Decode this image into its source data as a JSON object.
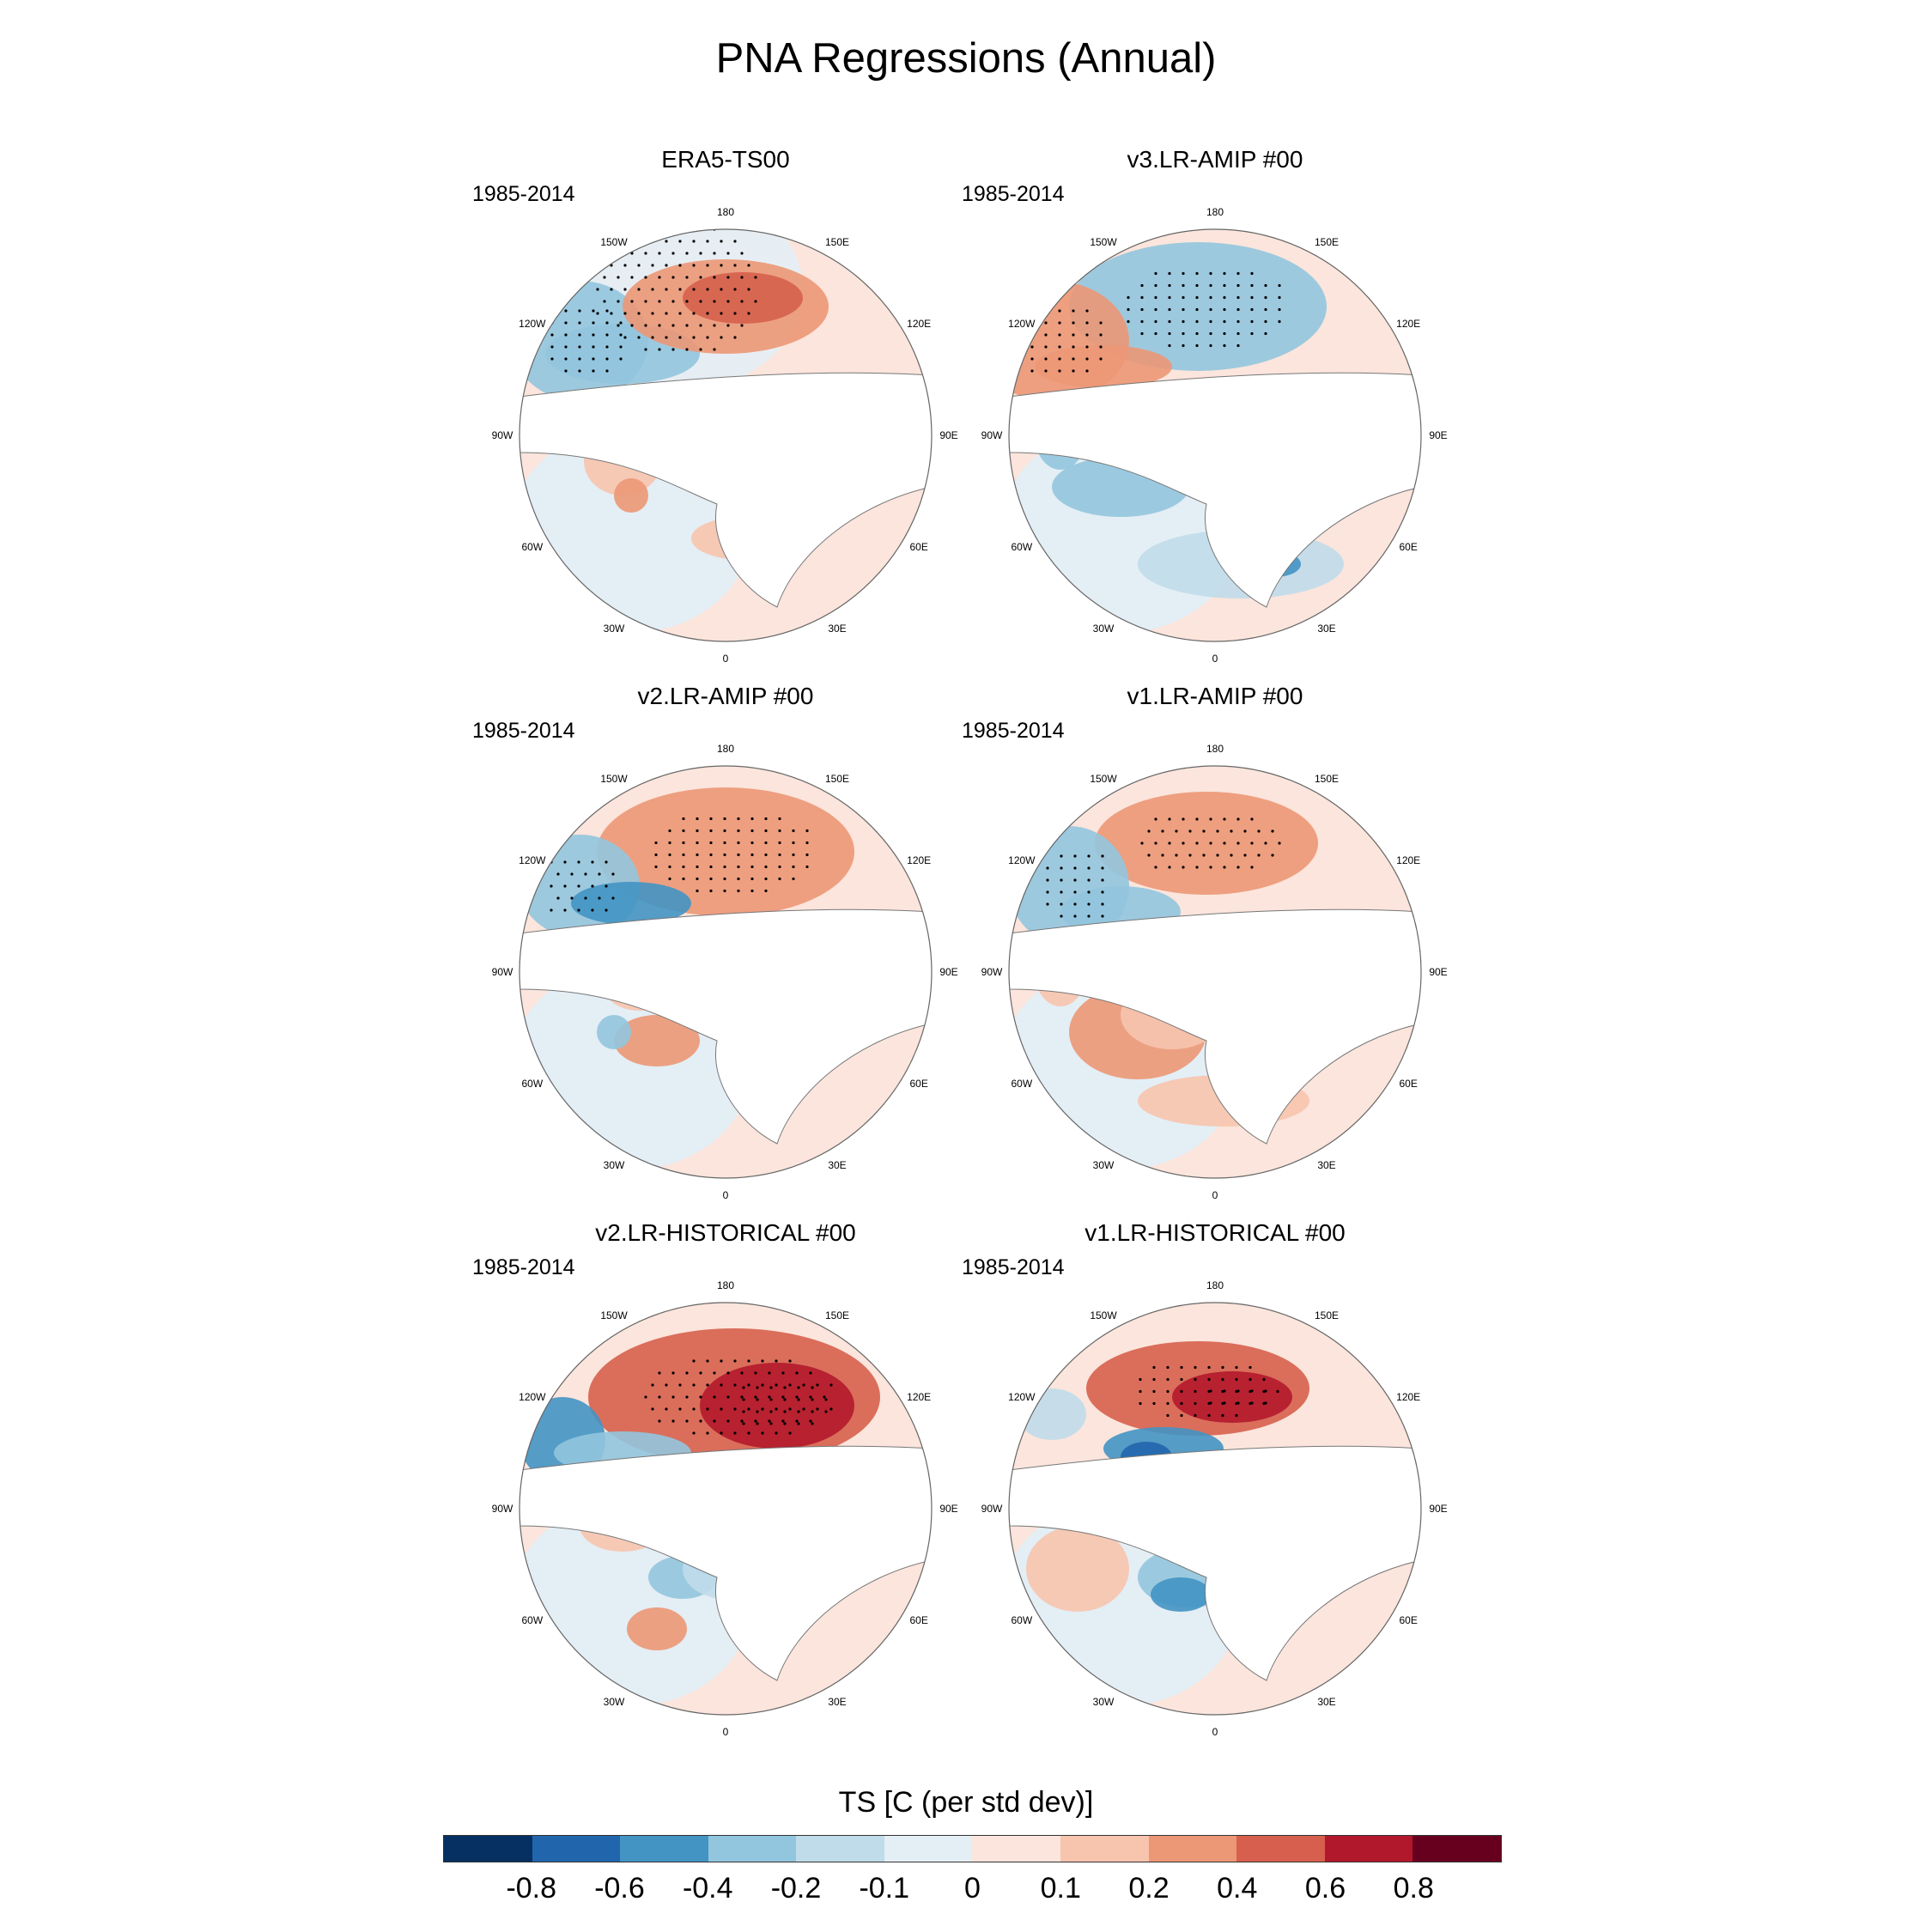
{
  "title": "PNA Regressions (Annual)",
  "panels": [
    {
      "title": "ERA5-TS00",
      "period": "1985-2014",
      "pattern": "era5"
    },
    {
      "title": "v3.LR-AMIP  #00",
      "period": "1985-2014",
      "pattern": "v3amip"
    },
    {
      "title": "v2.LR-AMIP  #00",
      "period": "1985-2014",
      "pattern": "v2amip"
    },
    {
      "title": "v1.LR-AMIP  #00",
      "period": "1985-2014",
      "pattern": "v1amip"
    },
    {
      "title": "v2.LR-HISTORICAL  #00",
      "period": "1985-2014",
      "pattern": "v2hist"
    },
    {
      "title": "v1.LR-HISTORICAL  #00",
      "period": "1985-2014",
      "pattern": "v1hist"
    }
  ],
  "lon_labels": [
    "180",
    "150E",
    "120E",
    "90E",
    "60E",
    "30E",
    "0",
    "30W",
    "60W",
    "90W",
    "120W",
    "150W"
  ],
  "colorbar": {
    "title": "TS [C (per std dev)]",
    "tick_labels": [
      "-0.8",
      "-0.6",
      "-0.4",
      "-0.2",
      "-0.1",
      "0",
      "0.1",
      "0.2",
      "0.4",
      "0.6",
      "0.8"
    ],
    "colors": [
      "#053061",
      "#2166ac",
      "#4393c3",
      "#92c5de",
      "#c0dbea",
      "#e4eef5",
      "#fbe5dc",
      "#f7c4ae",
      "#ec9776",
      "#d6604d",
      "#b2182b",
      "#67001f"
    ]
  }
}
